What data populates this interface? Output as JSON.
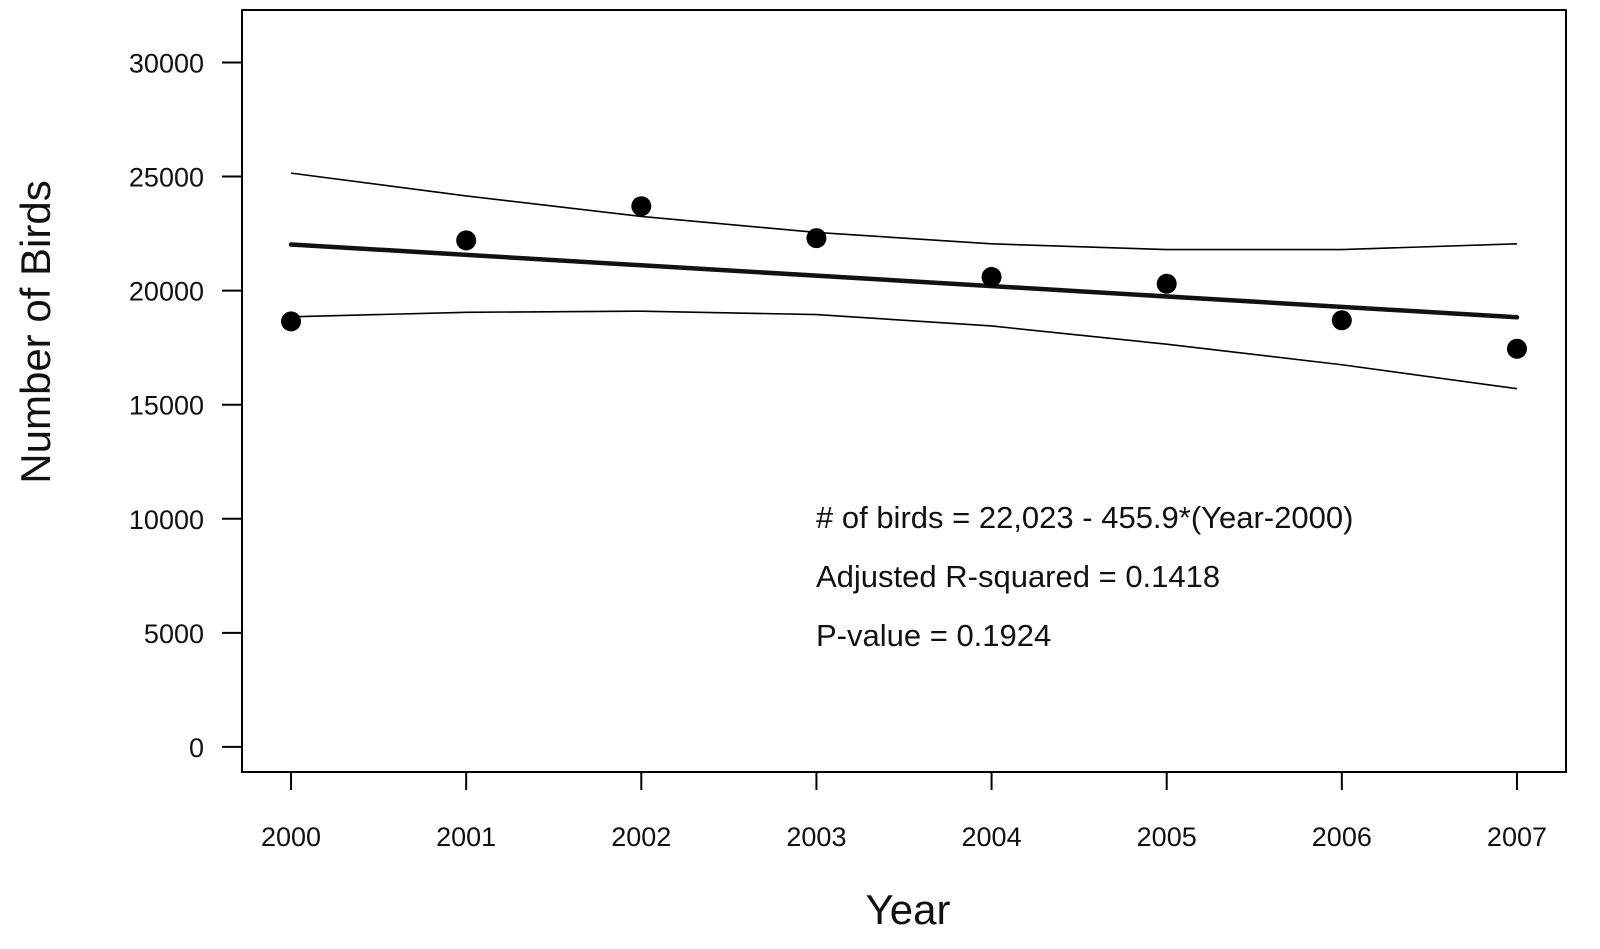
{
  "chart_data": {
    "type": "scatter",
    "xlabel": "Year",
    "ylabel": "Number of Birds",
    "xlim": [
      1999.72,
      2007.28
    ],
    "ylim": [
      -1100,
      32300
    ],
    "x_ticks": [
      2000,
      2001,
      2002,
      2003,
      2004,
      2005,
      2006,
      2007
    ],
    "y_ticks": [
      0,
      5000,
      10000,
      15000,
      20000,
      25000,
      30000
    ],
    "grid": false,
    "legend": "none",
    "points": [
      {
        "x": 2000,
        "y": 18650
      },
      {
        "x": 2001,
        "y": 22200
      },
      {
        "x": 2002,
        "y": 23700
      },
      {
        "x": 2003,
        "y": 22300
      },
      {
        "x": 2004,
        "y": 20600
      },
      {
        "x": 2005,
        "y": 20300
      },
      {
        "x": 2006,
        "y": 18700
      },
      {
        "x": 2007,
        "y": 17450
      }
    ],
    "fit_line": {
      "intercept": 22023,
      "slope": -455.9,
      "x_offset": 2000,
      "x_range": [
        2000,
        2007
      ]
    },
    "confidence_band": {
      "upper": [
        {
          "x": 2000,
          "y": 25150
        },
        {
          "x": 2001,
          "y": 24150
        },
        {
          "x": 2002,
          "y": 23250
        },
        {
          "x": 2003,
          "y": 22550
        },
        {
          "x": 2004,
          "y": 22050
        },
        {
          "x": 2005,
          "y": 21800
        },
        {
          "x": 2006,
          "y": 21800
        },
        {
          "x": 2007,
          "y": 22050
        }
      ],
      "lower": [
        {
          "x": 2000,
          "y": 18850
        },
        {
          "x": 2001,
          "y": 19050
        },
        {
          "x": 2002,
          "y": 19100
        },
        {
          "x": 2003,
          "y": 18950
        },
        {
          "x": 2004,
          "y": 18450
        },
        {
          "x": 2005,
          "y": 17650
        },
        {
          "x": 2006,
          "y": 16750
        },
        {
          "x": 2007,
          "y": 15700
        }
      ]
    },
    "annotations": [
      "# of birds = 22,023 - 455.9*(Year-2000)",
      "Adjusted R-squared = 0.1418",
      "P-value = 0.1924"
    ],
    "colors": {
      "points": "#000000",
      "fit_line": "#111111",
      "band": "#000000",
      "frame": "#000000"
    }
  }
}
